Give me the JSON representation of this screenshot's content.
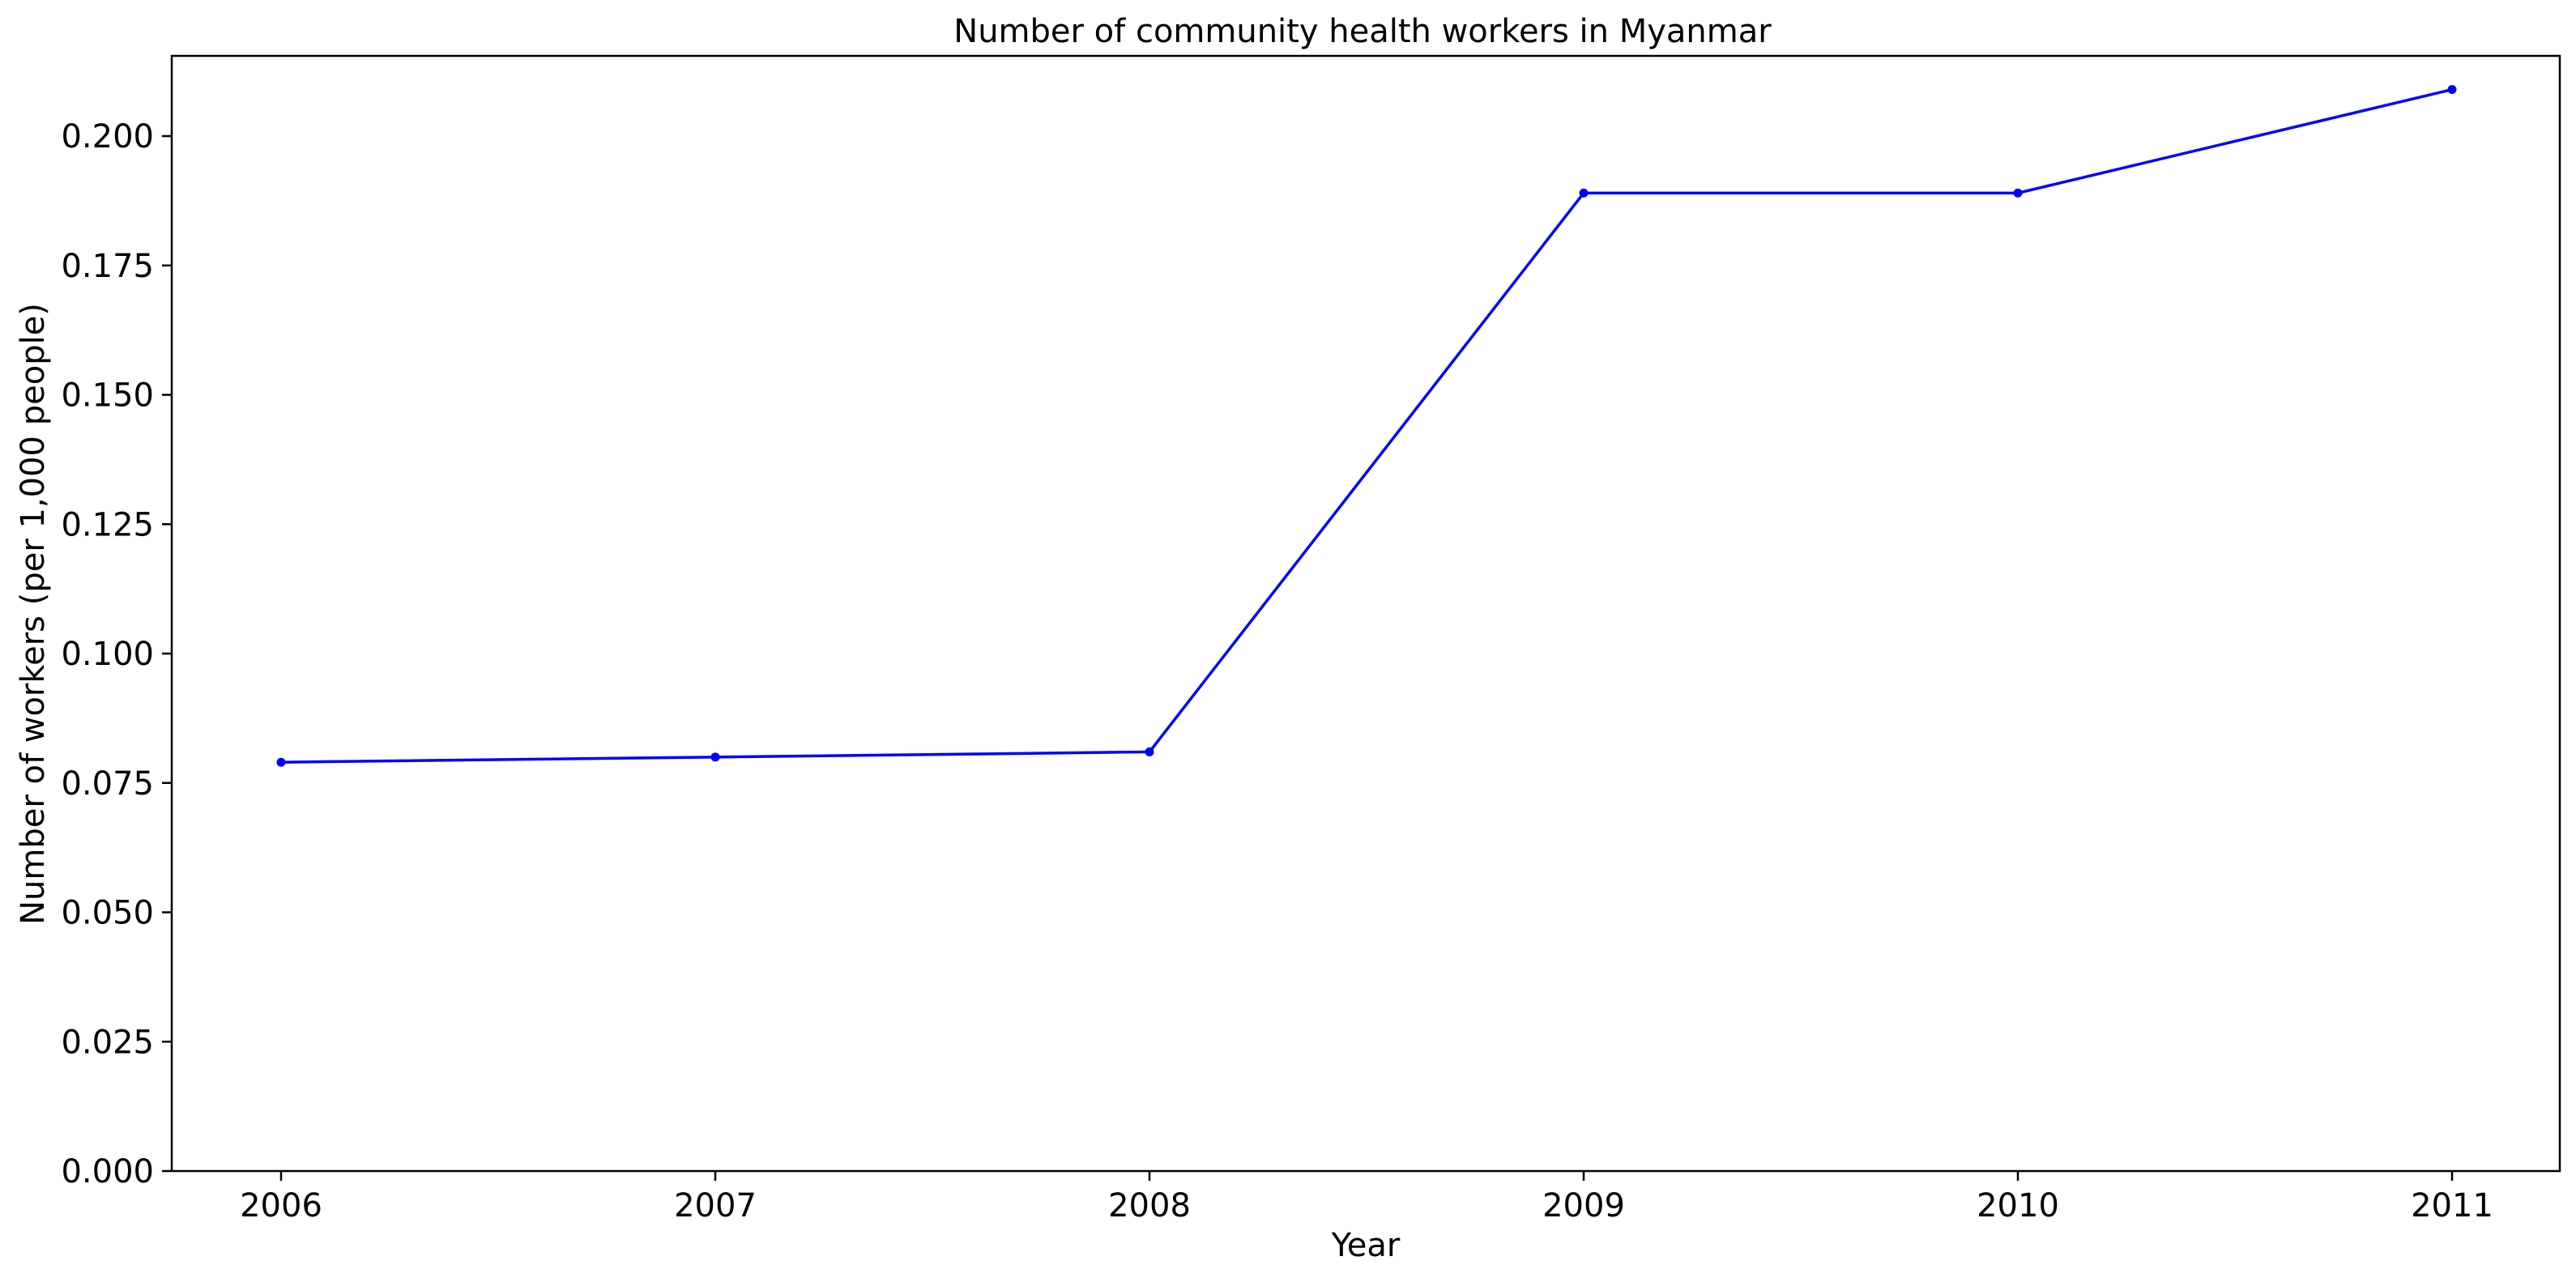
{
  "chart_data": {
    "type": "line",
    "title": "Number of community health workers in Myanmar",
    "xlabel": "Year",
    "ylabel": "Number of workers (per 1,000 people)",
    "categories": [
      "2006",
      "2007",
      "2008",
      "2009",
      "2010",
      "2011"
    ],
    "series": [
      {
        "values": [
          0.079,
          0.08,
          0.081,
          0.189,
          0.189,
          0.209
        ],
        "color": "#0000ff",
        "marker": "dot"
      }
    ],
    "ylim": [
      0,
      0.2155
    ],
    "yticks": [
      0.0,
      0.025,
      0.05,
      0.075,
      0.1,
      0.125,
      0.15,
      0.175,
      0.2
    ],
    "ytick_labels": [
      "0.000",
      "0.025",
      "0.050",
      "0.075",
      "0.100",
      "0.125",
      "0.150",
      "0.175",
      "0.200"
    ],
    "grid": false,
    "legend": "none"
  }
}
